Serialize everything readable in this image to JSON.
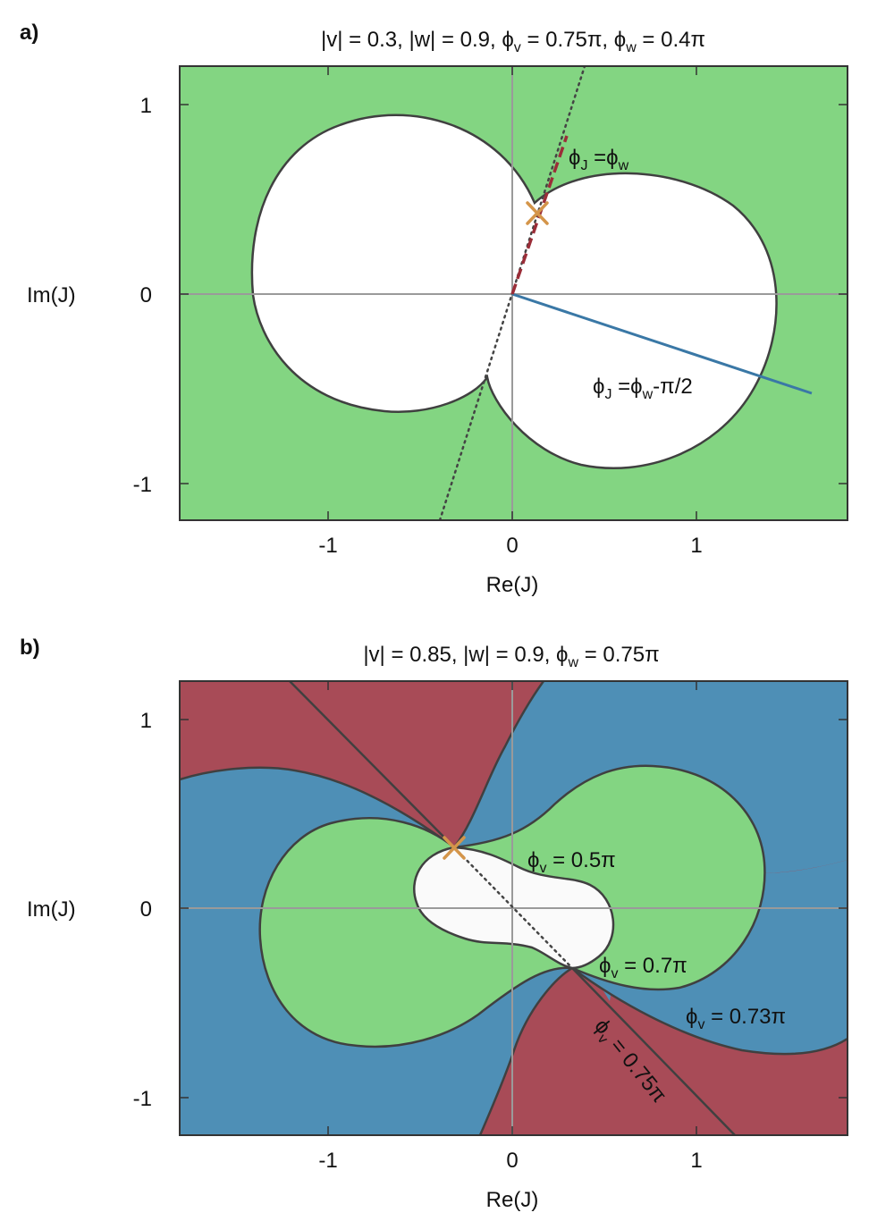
{
  "chart_data": [
    {
      "type": "area",
      "panel_label": "a)",
      "title": {
        "parts": [
          {
            "t": "|v| = 0.3, |w| = 0.9, "
          },
          {
            "t": "ϕ"
          },
          {
            "t": "v",
            "sub": true
          },
          {
            "t": " = 0.75π, "
          },
          {
            "t": "ϕ"
          },
          {
            "t": "w",
            "sub": true
          },
          {
            "t": " = 0.4π"
          }
        ]
      },
      "xlabel": "Re(J)",
      "ylabel": "Im(J)",
      "xlim": [
        -1.8,
        1.8
      ],
      "ylim": [
        -1.2,
        1.2
      ],
      "xticks": [
        "-1",
        "0",
        "1"
      ],
      "yticks": [
        "-1",
        "0",
        "1"
      ],
      "grid": false,
      "colors": {
        "region": "#83d582",
        "hole": "#ffffff",
        "outline": "#404040",
        "dashed_ray": "#9b2d38",
        "blue_ray": "#3a78a6",
        "marker": "#d4954a",
        "dotted": "#444444"
      },
      "regions": [
        {
          "name": "green",
          "color": "#83d582"
        },
        {
          "name": "white-lobes",
          "color": "#ffffff"
        }
      ],
      "lines": [
        {
          "name": "dotted-line",
          "angle": "0.4π",
          "style": "dotted",
          "from": [
            -0.39,
            -1.2
          ],
          "to": [
            0.39,
            1.2
          ]
        },
        {
          "name": "phiJ-eq-phiw",
          "style": "dashed",
          "from": [
            0,
            0
          ],
          "to": [
            0.3,
            0.93
          ]
        },
        {
          "name": "phiJ-eq-phiw-minus-pi2",
          "style": "solid",
          "from": [
            0,
            0
          ],
          "to": [
            1.62,
            -0.53
          ]
        }
      ],
      "marker": {
        "x": 0.14,
        "y": 0.43,
        "symbol": "x"
      },
      "annotations": [
        {
          "name": "label-phiJ-phiw",
          "x": 0.3,
          "y": 0.75,
          "parts": [
            {
              "t": "ϕ"
            },
            {
              "t": "J",
              "sub": true
            },
            {
              "t": " =ϕ"
            },
            {
              "t": "w",
              "sub": true
            }
          ]
        },
        {
          "name": "label-phiJ-phiw-pi2",
          "x": 0.44,
          "y": -0.52,
          "parts": [
            {
              "t": "ϕ"
            },
            {
              "t": "J",
              "sub": true
            },
            {
              "t": " =ϕ"
            },
            {
              "t": "w",
              "sub": true
            },
            {
              "t": "-π/2"
            }
          ]
        }
      ]
    },
    {
      "type": "area",
      "panel_label": "b)",
      "title": {
        "parts": [
          {
            "t": "|v| = 0.85, |w| = 0.9, "
          },
          {
            "t": "ϕ"
          },
          {
            "t": "w",
            "sub": true
          },
          {
            "t": " = 0.75π"
          }
        ]
      },
      "xlabel": "Re(J)",
      "ylabel": "Im(J)",
      "xlim": [
        -1.8,
        1.8
      ],
      "ylim": [
        -1.2,
        1.2
      ],
      "xticks": [
        "-1",
        "0",
        "1"
      ],
      "yticks": [
        "-1",
        "0",
        "1"
      ],
      "grid": false,
      "colors": {
        "red": "#a84b57",
        "blue": "#4e8fb6",
        "green": "#83d582",
        "inner": "#fafafa",
        "outline": "#404040",
        "marker": "#d4954a"
      },
      "regions": [
        {
          "name": "phiv-0.5pi",
          "color": "#fafafa"
        },
        {
          "name": "phiv-0.7pi",
          "color": "#83d582"
        },
        {
          "name": "phiv-0.73pi",
          "color": "#4e8fb6"
        },
        {
          "name": "phiv-0.75pi",
          "color": "#a84b57"
        }
      ],
      "lines": [
        {
          "name": "dotted-diagonal",
          "style": "dotted",
          "from": [
            -0.32,
            0.33
          ],
          "to": [
            0.32,
            -0.33
          ]
        },
        {
          "name": "upper-straight",
          "style": "solid",
          "from": [
            -1.2,
            1.2
          ],
          "to": [
            -0.32,
            0.33
          ]
        },
        {
          "name": "lower-straight",
          "style": "solid",
          "from": [
            0.32,
            -0.33
          ],
          "to": [
            1.2,
            -1.2
          ]
        }
      ],
      "marker": {
        "x": -0.32,
        "y": 0.33,
        "symbol": "x"
      },
      "annotations": [
        {
          "name": "label-phiv-05",
          "x": 0.08,
          "y": 0.25,
          "parts": [
            {
              "t": "ϕ"
            },
            {
              "t": "v",
              "sub": true
            },
            {
              "t": " = 0.5π"
            }
          ]
        },
        {
          "name": "label-phiv-07",
          "x": 0.47,
          "y": -0.3,
          "parts": [
            {
              "t": "ϕ"
            },
            {
              "t": "v",
              "sub": true
            },
            {
              "t": " = 0.7π"
            }
          ]
        },
        {
          "name": "label-phiv-073",
          "x": 0.93,
          "y": -0.6,
          "parts": [
            {
              "t": "ϕ"
            },
            {
              "t": "v",
              "sub": true
            },
            {
              "t": " = 0.73π"
            }
          ]
        },
        {
          "name": "label-phiv-075",
          "x": 0.42,
          "y": -0.63,
          "rotate": 51,
          "parts": [
            {
              "t": "ϕ"
            },
            {
              "t": "v",
              "sub": true
            },
            {
              "t": " = 0.75π"
            }
          ]
        }
      ]
    }
  ]
}
